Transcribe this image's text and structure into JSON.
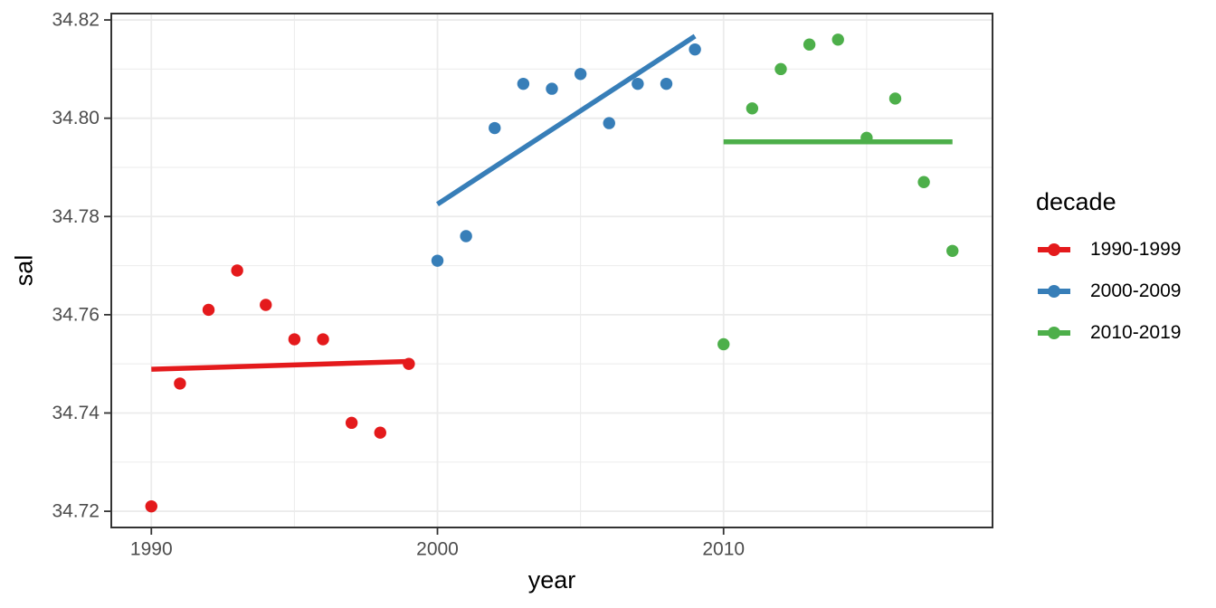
{
  "chart_data": {
    "type": "scatter",
    "title": "",
    "xlabel": "year",
    "ylabel": "sal",
    "xlim": [
      1988.6,
      2019.4
    ],
    "ylim": [
      34.7167,
      34.8213
    ],
    "x_ticks": [
      1990,
      2000,
      2010
    ],
    "x_minor_ticks": [
      1995,
      2005,
      2015
    ],
    "y_ticks": [
      34.72,
      34.74,
      34.76,
      34.78,
      34.8,
      34.82
    ],
    "y_minor_ticks": [
      34.73,
      34.75,
      34.77,
      34.79,
      34.81
    ],
    "grid": true,
    "legend_position": "right",
    "series": [
      {
        "name": "1990-1999",
        "color": "#E41A1C",
        "x": [
          1990,
          1991,
          1992,
          1993,
          1994,
          1995,
          1996,
          1997,
          1998,
          1999
        ],
        "y": [
          34.721,
          34.746,
          34.761,
          34.769,
          34.762,
          34.755,
          34.755,
          34.738,
          34.736,
          34.75
        ],
        "trend": {
          "x": [
            1990,
            1999
          ],
          "y": [
            34.7489,
            34.7505
          ]
        }
      },
      {
        "name": "2000-2009",
        "color": "#377EB8",
        "x": [
          2000,
          2001,
          2002,
          2003,
          2004,
          2005,
          2006,
          2007,
          2008,
          2009
        ],
        "y": [
          34.771,
          34.776,
          34.798,
          34.807,
          34.806,
          34.809,
          34.799,
          34.807,
          34.807,
          34.814
        ],
        "trend": {
          "x": [
            2000,
            2009
          ],
          "y": [
            34.7825,
            34.8167
          ]
        }
      },
      {
        "name": "2010-2019",
        "color": "#4DAF4A",
        "x": [
          2010,
          2011,
          2012,
          2013,
          2014,
          2015,
          2016,
          2017,
          2018
        ],
        "y": [
          34.754,
          34.802,
          34.81,
          34.815,
          34.816,
          34.796,
          34.804,
          34.787,
          34.773
        ],
        "trend": {
          "x": [
            2010,
            2018
          ],
          "y": [
            34.7952,
            34.7952
          ]
        }
      }
    ]
  },
  "legend": {
    "title": "decade"
  },
  "colors": {
    "background": "#FFFFFF",
    "gridline": "#EBEBEB",
    "panel_border": "#333333",
    "tick_mark": "#333333",
    "tick_label": "#4D4D4D",
    "axis_title": "#000000"
  }
}
